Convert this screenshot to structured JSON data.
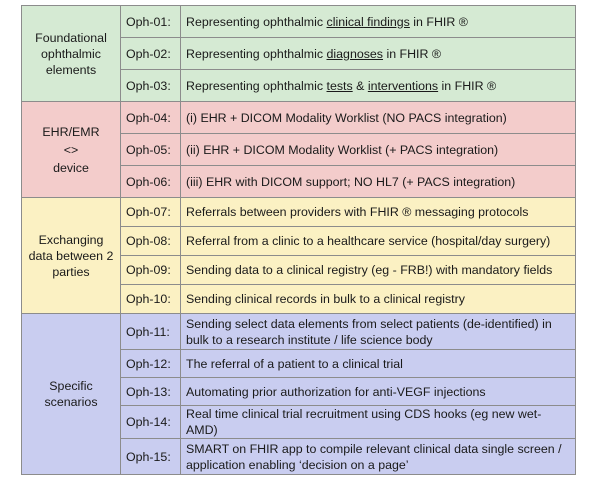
{
  "groups": [
    {
      "category": "Foundational ophthalmic elements",
      "rows": [
        {
          "code": "Oph-01:",
          "parts": [
            "Representing ophthalmic ",
            "clinical findings",
            " in FHIR ®"
          ]
        },
        {
          "code": "Oph-02:",
          "parts": [
            "Representing ophthalmic ",
            "diagnoses",
            " in FHIR ®"
          ]
        },
        {
          "code": "Oph-03:",
          "parts": [
            "Representing ophthalmic ",
            "tests",
            " & ",
            "interventions",
            " in FHIR ®"
          ]
        }
      ]
    },
    {
      "category_lines": [
        "EHR/EMR",
        "<>",
        "device"
      ],
      "rows": [
        {
          "code": "Oph-04:",
          "text": "(i) EHR + DICOM Modality Worklist (NO PACS integration)"
        },
        {
          "code": "Oph-05:",
          "text": "(ii) EHR + DICOM Modality Worklist (+ PACS integration)"
        },
        {
          "code": "Oph-06:",
          "text": "(iii) EHR with DICOM support; NO HL7  (+ PACS integration)"
        }
      ]
    },
    {
      "category": "Exchanging data between 2 parties",
      "rows": [
        {
          "code": "Oph-07:",
          "text": "Referrals between providers with FHIR ® messaging protocols"
        },
        {
          "code": "Oph-08:",
          "text": "Referral from a clinic to a healthcare service (hospital/day surgery)"
        },
        {
          "code": "Oph-09:",
          "text": "Sending data to a clinical registry (eg - FRB!) with mandatory fields"
        },
        {
          "code": "Oph-10:",
          "text": "Sending clinical records in bulk to a clinical registry"
        }
      ]
    },
    {
      "category": "Specific scenarios",
      "rows": [
        {
          "code": "Oph-11:",
          "text": "Sending select data elements from select patients (de-identified) in bulk to a research institute / life science body"
        },
        {
          "code": "Oph-12:",
          "text": "The referral of a patient to a clinical trial"
        },
        {
          "code": "Oph-13:",
          "text": "Automating prior authorization for anti-VEGF injections"
        },
        {
          "code": "Oph-14:",
          "text": "Real time clinical trial recruitment using CDS hooks (eg new wet-AMD)"
        },
        {
          "code": "Oph-15:",
          "text": "SMART on FHIR app to compile relevant clinical data single screen / application enabling ‘decision on a page’"
        }
      ]
    }
  ]
}
